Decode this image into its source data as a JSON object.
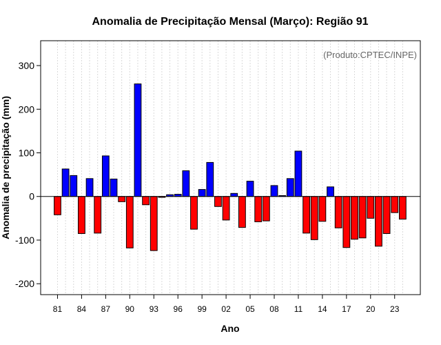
{
  "chart_data": {
    "type": "bar",
    "title": "Anomalia de Precipitação Mensal (Março): Região 91",
    "xlabel": "Ano",
    "ylabel": "Anomalia de precipitação (mm)",
    "credit": "(Produto:CPTEC/INPE)",
    "ylim": [
      -225,
      357
    ],
    "xlim": [
      1978.9,
      2026.2
    ],
    "yticks": [
      -200,
      -100,
      0,
      100,
      200,
      300
    ],
    "xticks": [
      1981,
      1984,
      1987,
      1990,
      1993,
      1996,
      1999,
      2002,
      2005,
      2008,
      2011,
      2014,
      2017,
      2020,
      2023
    ],
    "xtick_labels": [
      "81",
      "84",
      "87",
      "90",
      "93",
      "96",
      "99",
      "02",
      "05",
      "08",
      "11",
      "14",
      "17",
      "20",
      "23"
    ],
    "grid": true,
    "positive_color": "#0000ff",
    "negative_color": "#ff0000",
    "categories": [
      1981,
      1982,
      1983,
      1984,
      1985,
      1986,
      1987,
      1988,
      1989,
      1990,
      1991,
      1992,
      1993,
      1994,
      1995,
      1996,
      1997,
      1998,
      1999,
      2000,
      2001,
      2002,
      2003,
      2004,
      2005,
      2006,
      2007,
      2008,
      2009,
      2010,
      2011,
      2012,
      2013,
      2014,
      2015,
      2016,
      2017,
      2018,
      2019,
      2020,
      2021,
      2022,
      2023,
      2024
    ],
    "values": [
      -42,
      63,
      48,
      -85,
      41,
      -84,
      93,
      40,
      -12,
      -118,
      258,
      -19,
      -124,
      -2,
      4,
      5,
      59,
      -75,
      16,
      78,
      -23,
      -54,
      7,
      -71,
      35,
      -58,
      -56,
      25,
      2,
      41,
      104,
      -84,
      -99,
      -57,
      22,
      -72,
      -117,
      -98,
      -95,
      -50,
      -114,
      -85,
      -37,
      -52
    ]
  }
}
